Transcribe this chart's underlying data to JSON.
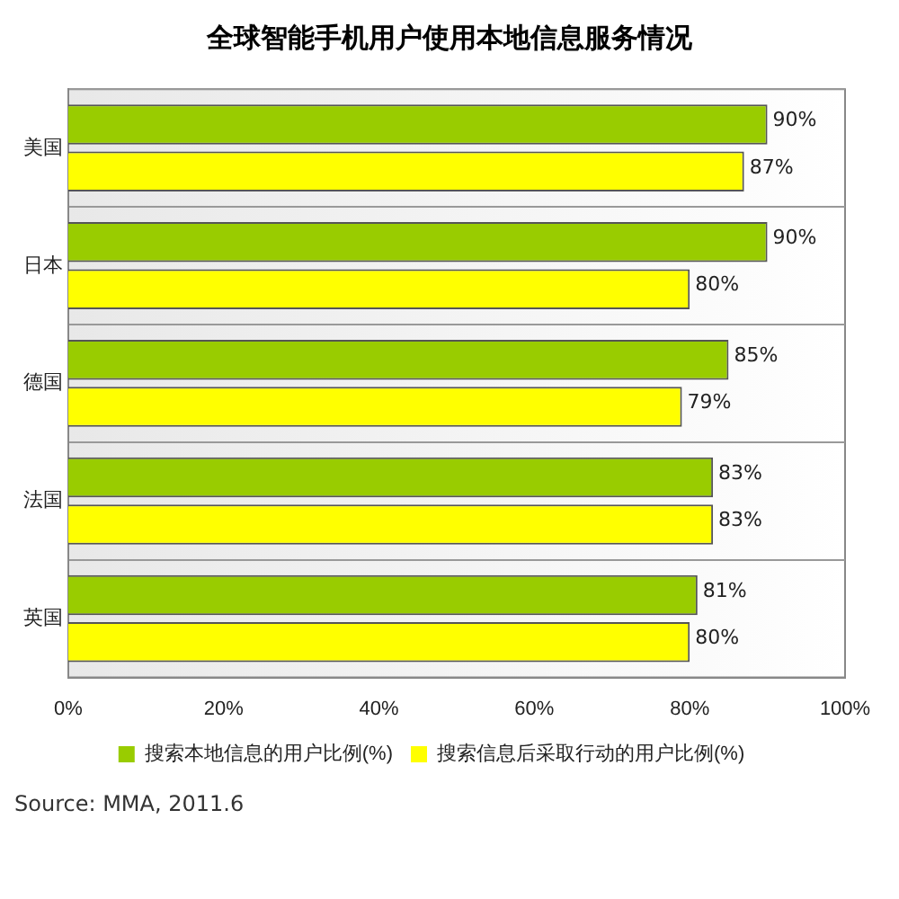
{
  "chart_data": {
    "type": "bar",
    "orientation": "horizontal",
    "title": "全球智能手机用户使用本地信息服务情况",
    "categories": [
      "美国",
      "日本",
      "德国",
      "法国",
      "英国"
    ],
    "series": [
      {
        "name": "搜索本地信息的用户比例(%)",
        "color": "#99cc00",
        "values": [
          90,
          90,
          85,
          83,
          81
        ],
        "value_labels": [
          "90%",
          "90%",
          "85%",
          "83%",
          "81%"
        ]
      },
      {
        "name": "搜索信息后采取行动的用户比例(%)",
        "color": "#ffff00",
        "values": [
          87,
          80,
          79,
          83,
          80
        ],
        "value_labels": [
          "87%",
          "80%",
          "79%",
          "83%",
          "80%"
        ]
      }
    ],
    "xlim": [
      0,
      100
    ],
    "xticks": [
      {
        "value": 0,
        "label": "0%"
      },
      {
        "value": 20,
        "label": "20%"
      },
      {
        "value": 40,
        "label": "40%"
      },
      {
        "value": 60,
        "label": "60%"
      },
      {
        "value": 80,
        "label": "80%"
      },
      {
        "value": 100,
        "label": "100%"
      }
    ],
    "grid": "y",
    "legend": "bottom",
    "annotations": [
      "Source: MMA, 2011.6"
    ]
  }
}
